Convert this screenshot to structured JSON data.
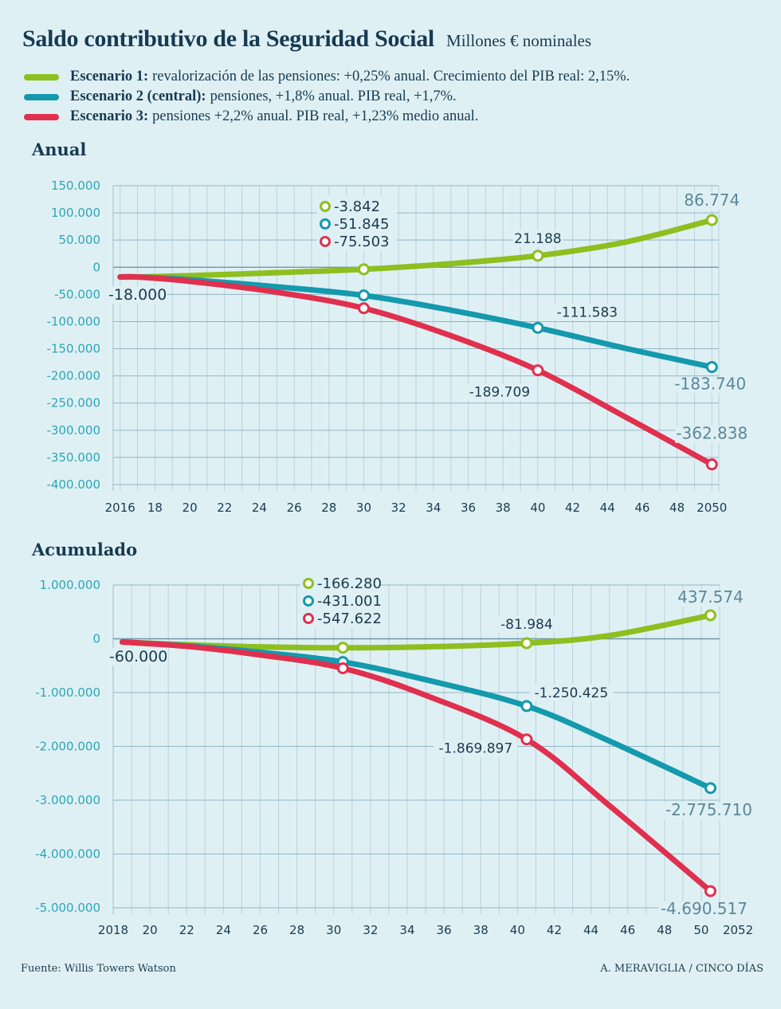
{
  "header": {
    "title": "Saldo contributivo de la Seguridad Social",
    "subtitle": "Millones € nominales"
  },
  "legend": [
    {
      "bold": "Escenario 1:",
      "text": "revalorización de las pensiones: +0,25% anual. Crecimiento del PIB real: 2,15%.",
      "color": "#8dbf1f"
    },
    {
      "bold": "Escenario 2 (central):",
      "text": "pensiones, +1,8% anual. PIB real, +1,7%.",
      "color": "#1499ad"
    },
    {
      "bold": "Escenario 3:",
      "text": "pensiones +2,2% anual. PIB real, +1,23% medio anual.",
      "color": "#e0304e"
    }
  ],
  "footer": {
    "source": "Fuente: Willis Towers Watson",
    "credit": "A. MERAVIGLIA / CINCO DÍAS"
  },
  "chart_data": [
    {
      "type": "line",
      "title": "Anual",
      "xlabel": "",
      "ylabel": "",
      "ylim": [
        -400000,
        150000
      ],
      "xlim": [
        2015.6,
        2050.4
      ],
      "yticks": [
        150000,
        100000,
        50000,
        0,
        -50000,
        -100000,
        -150000,
        -200000,
        -250000,
        -300000,
        -350000,
        -400000
      ],
      "ytick_labels": [
        "150.000",
        "100.000",
        "50.000",
        "0",
        "-50.000",
        "-100.000",
        "-150.000",
        "-200.000",
        "-250.000",
        "-300.000",
        "-350.000",
        "-400.000"
      ],
      "xticks": [
        2016,
        2018,
        2020,
        2022,
        2024,
        2026,
        2028,
        2030,
        2032,
        2034,
        2036,
        2038,
        2040,
        2042,
        2044,
        2046,
        2048,
        2050
      ],
      "xtick_labels": [
        "2016",
        "18",
        "20",
        "22",
        "24",
        "26",
        "28",
        "30",
        "32",
        "34",
        "36",
        "38",
        "40",
        "42",
        "44",
        "46",
        "48",
        "2050"
      ],
      "grid": true,
      "start_label": "-18.000",
      "series": [
        {
          "name": "Escenario 1",
          "color": "#8dbf1f",
          "x": [
            2016,
            2017,
            2020,
            2025,
            2030,
            2035,
            2040,
            2045,
            2050
          ],
          "y": [
            -18000,
            -18000,
            -15500,
            -10000,
            -3842,
            6500,
            21188,
            46000,
            86774
          ],
          "markers": [
            {
              "x": 2030,
              "y": -3842
            },
            {
              "x": 2040,
              "y": 21188
            },
            {
              "x": 2050,
              "y": 86774
            }
          ],
          "labels": [
            {
              "text": "21.188",
              "at": 2040
            },
            {
              "text": "86.774",
              "at": 2050
            }
          ]
        },
        {
          "name": "Escenario 2 (central)",
          "color": "#1499ad",
          "x": [
            2016,
            2017,
            2020,
            2025,
            2030,
            2035,
            2040,
            2045,
            2050
          ],
          "y": [
            -18000,
            -18000,
            -23000,
            -36000,
            -51845,
            -79000,
            -111583,
            -149000,
            -183740
          ],
          "markers": [
            {
              "x": 2030,
              "y": -51845
            },
            {
              "x": 2040,
              "y": -111583
            },
            {
              "x": 2050,
              "y": -183740
            }
          ],
          "labels": [
            {
              "text": "-111.583",
              "at": 2040
            },
            {
              "text": "-183.740",
              "at": 2050
            }
          ]
        },
        {
          "name": "Escenario 3",
          "color": "#e0304e",
          "x": [
            2016,
            2017,
            2020,
            2025,
            2030,
            2035,
            2040,
            2045,
            2050
          ],
          "y": [
            -18000,
            -18000,
            -26000,
            -46000,
            -75503,
            -126000,
            -189709,
            -275000,
            -362838
          ],
          "markers": [
            {
              "x": 2030,
              "y": -75503
            },
            {
              "x": 2040,
              "y": -189709
            },
            {
              "x": 2050,
              "y": -362838
            }
          ],
          "labels": [
            {
              "text": "-189.709",
              "at": 2040
            },
            {
              "text": "-362.838",
              "at": 2050
            }
          ]
        }
      ],
      "callout_2030": [
        "-3.842",
        "-51.845",
        "-75.503"
      ]
    },
    {
      "type": "line",
      "title": "Acumulado",
      "xlabel": "",
      "ylabel": "",
      "ylim": [
        -5000000,
        1000000
      ],
      "xlim": [
        2018,
        2051
      ],
      "yticks": [
        1000000,
        0,
        -1000000,
        -2000000,
        -3000000,
        -4000000,
        -5000000
      ],
      "ytick_labels": [
        "1.000.000",
        "0",
        "-1.000.000",
        "-2.000.000",
        "-3.000.000",
        "-4.000.000",
        "-5.000.000"
      ],
      "xticks": [
        2018,
        2020,
        2022,
        2024,
        2026,
        2028,
        2030,
        2032,
        2034,
        2036,
        2038,
        2040,
        2042,
        2044,
        2046,
        2048,
        2050,
        2052
      ],
      "xtick_labels": [
        "2018",
        "20",
        "22",
        "24",
        "26",
        "28",
        "30",
        "32",
        "34",
        "36",
        "38",
        "40",
        "42",
        "44",
        "46",
        "48",
        "50",
        "2052"
      ],
      "grid": true,
      "start_label": "-60.000",
      "series": [
        {
          "name": "Escenario 1",
          "color": "#8dbf1f",
          "x": [
            2018.5,
            2022,
            2026,
            2030.5,
            2035,
            2040.5,
            2045,
            2050.5
          ],
          "y": [
            -60000,
            -110000,
            -150000,
            -166280,
            -150000,
            -81984,
            60000,
            437574
          ],
          "markers": [
            {
              "x": 2030.5,
              "y": -166280
            },
            {
              "x": 2040.5,
              "y": -81984
            },
            {
              "x": 2050.5,
              "y": 437574
            }
          ],
          "labels": [
            {
              "text": "-81.984",
              "at": 2040.5
            },
            {
              "text": "437.574",
              "at": 2050.5
            }
          ]
        },
        {
          "name": "Escenario 2 (central)",
          "color": "#1499ad",
          "x": [
            2018.5,
            2022,
            2026,
            2030.5,
            2035,
            2040.5,
            2045,
            2050.5
          ],
          "y": [
            -60000,
            -130000,
            -250000,
            -431001,
            -760000,
            -1250425,
            -1900000,
            -2775710
          ],
          "markers": [
            {
              "x": 2030.5,
              "y": -431001
            },
            {
              "x": 2040.5,
              "y": -1250425
            },
            {
              "x": 2050.5,
              "y": -2775710
            }
          ],
          "labels": [
            {
              "text": "-1.250.425",
              "at": 2040.5
            },
            {
              "text": "-2.775.710",
              "at": 2050.5
            }
          ]
        },
        {
          "name": "Escenario 3",
          "color": "#e0304e",
          "x": [
            2018.5,
            2022,
            2026,
            2030.5,
            2035,
            2040.5,
            2045,
            2050.5
          ],
          "y": [
            -60000,
            -140000,
            -300000,
            -547622,
            -1050000,
            -1869897,
            -3100000,
            -4690517
          ],
          "markers": [
            {
              "x": 2030.5,
              "y": -547622
            },
            {
              "x": 2040.5,
              "y": -1869897
            },
            {
              "x": 2050.5,
              "y": -4690517
            }
          ],
          "labels": [
            {
              "text": "-1.869.897",
              "at": 2040.5
            },
            {
              "text": "-4.690.517",
              "at": 2050.5
            }
          ]
        }
      ],
      "callout_2030": [
        "-166.280",
        "-431.001",
        "-547.622"
      ]
    }
  ]
}
